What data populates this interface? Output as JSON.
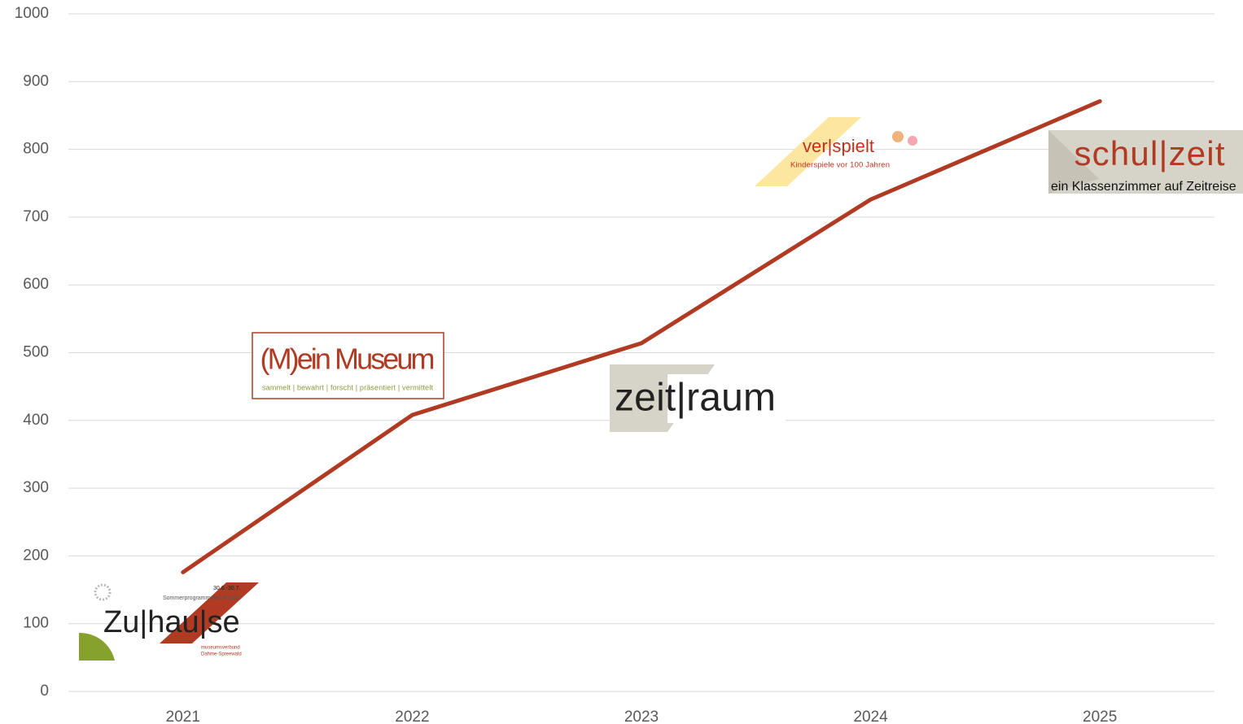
{
  "chart_data": {
    "type": "line",
    "categories": [
      "2021",
      "2022",
      "2023",
      "2024",
      "2025"
    ],
    "values": [
      176,
      408,
      514,
      726,
      871
    ],
    "color": "#b03a22",
    "ylim": [
      0,
      1000
    ],
    "yticks": [
      0,
      100,
      200,
      300,
      400,
      500,
      600,
      700,
      800,
      900,
      1000
    ],
    "grid": true,
    "logos": [
      {
        "title": "Zu|hau|se",
        "lines": [
          "Sommerprogramm des MVDD",
          "30.6.-30.7.",
          "museumsverbund",
          "Dahme-Spreewald"
        ]
      },
      {
        "title": "(M)ein Museum",
        "lines": [
          "sammelt | bewahrt | forscht | präsentiert | vermittelt"
        ]
      },
      {
        "title": "zeit|raum",
        "lines": []
      },
      {
        "title": "ver|spielt",
        "lines": [
          "Kinderspiele vor 100 Jahren"
        ]
      },
      {
        "title": "schul|zeit",
        "lines": [
          "ein Klassenzimmer auf Zeitreise"
        ]
      }
    ]
  }
}
